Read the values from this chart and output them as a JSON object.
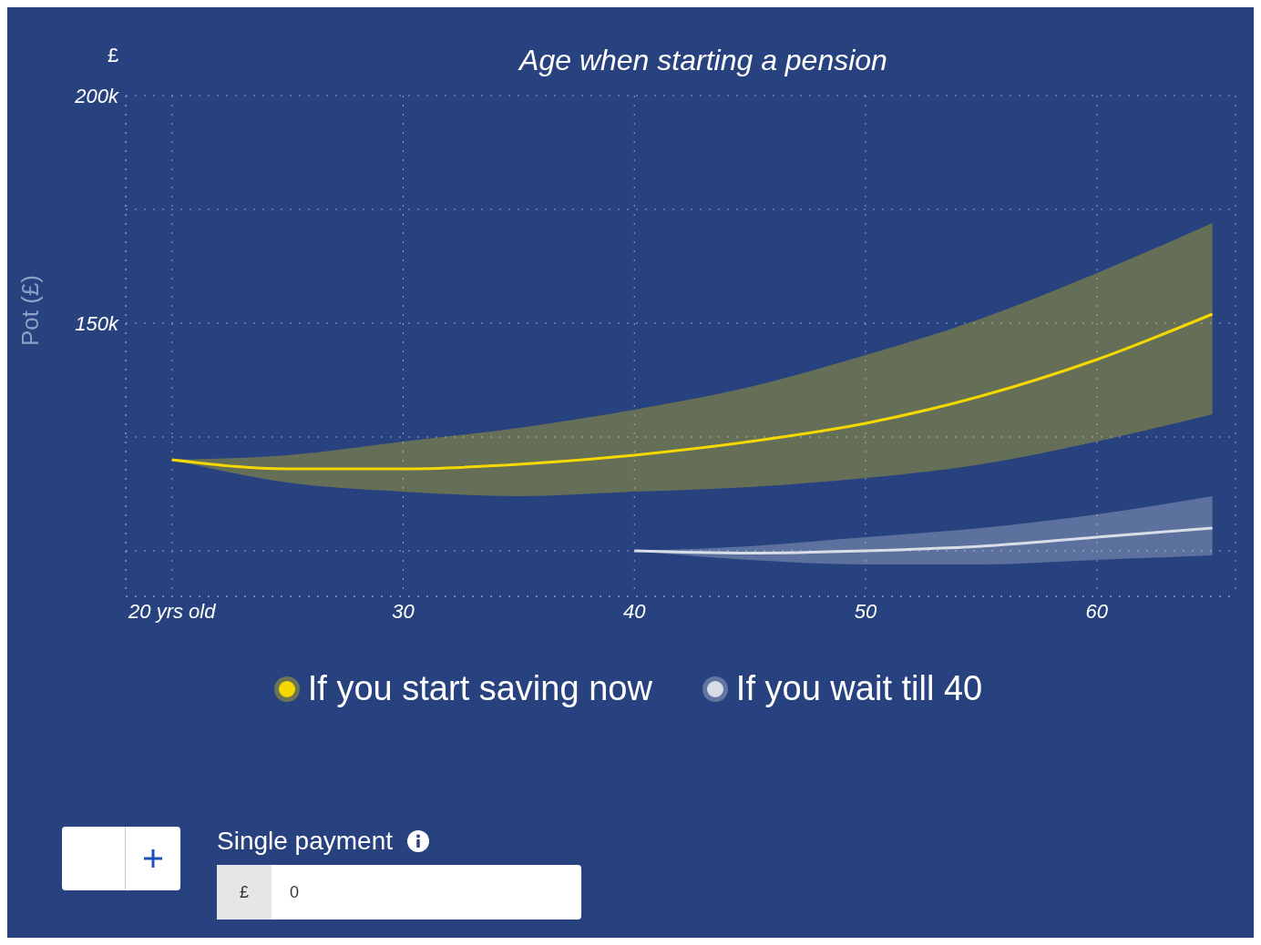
{
  "chart_data": {
    "type": "line",
    "title": "Age when starting a pension",
    "ylabel": "Pot (£)",
    "annotations": [
      "£",
      "Single payment",
      "£",
      "0"
    ],
    "xlim": [
      18,
      66
    ],
    "xticks": [
      {
        "value": 20,
        "label": "20 yrs old"
      },
      30,
      40,
      50,
      60
    ],
    "ylim": [
      90000,
      200000
    ],
    "yticks": [
      {
        "value": 100000,
        "label": null
      },
      {
        "value": 125000,
        "label": null
      },
      {
        "value": 150000,
        "label": "150k"
      },
      {
        "value": 175000,
        "label": null
      },
      {
        "value": 200000,
        "label": "200k"
      }
    ],
    "grid": true,
    "legend": "bottom",
    "marker": "none",
    "line_style": "solid",
    "series": [
      {
        "name": "If you start saving now",
        "color": "#f5d800",
        "x": [
          20,
          25,
          30,
          35,
          40,
          45,
          50,
          55,
          60,
          65
        ],
        "values": [
          120000,
          118000,
          118000,
          119000,
          121000,
          124000,
          128000,
          134000,
          142000,
          152000
        ],
        "lower": [
          120000,
          115000,
          113000,
          112000,
          113000,
          114000,
          116000,
          119000,
          124000,
          130000
        ],
        "upper": [
          120000,
          121000,
          124000,
          127000,
          131000,
          136000,
          143000,
          151000,
          161000,
          172000
        ]
      },
      {
        "name": "If you wait till 40",
        "color": "#d8dde8",
        "x": [
          40,
          45,
          50,
          55,
          60,
          65
        ],
        "values": [
          100000,
          99500,
          100000,
          101000,
          103000,
          105000
        ],
        "lower": [
          100000,
          98000,
          97000,
          97000,
          98000,
          99000
        ],
        "upper": [
          100000,
          101000,
          103000,
          105000,
          108000,
          112000
        ]
      }
    ]
  }
}
